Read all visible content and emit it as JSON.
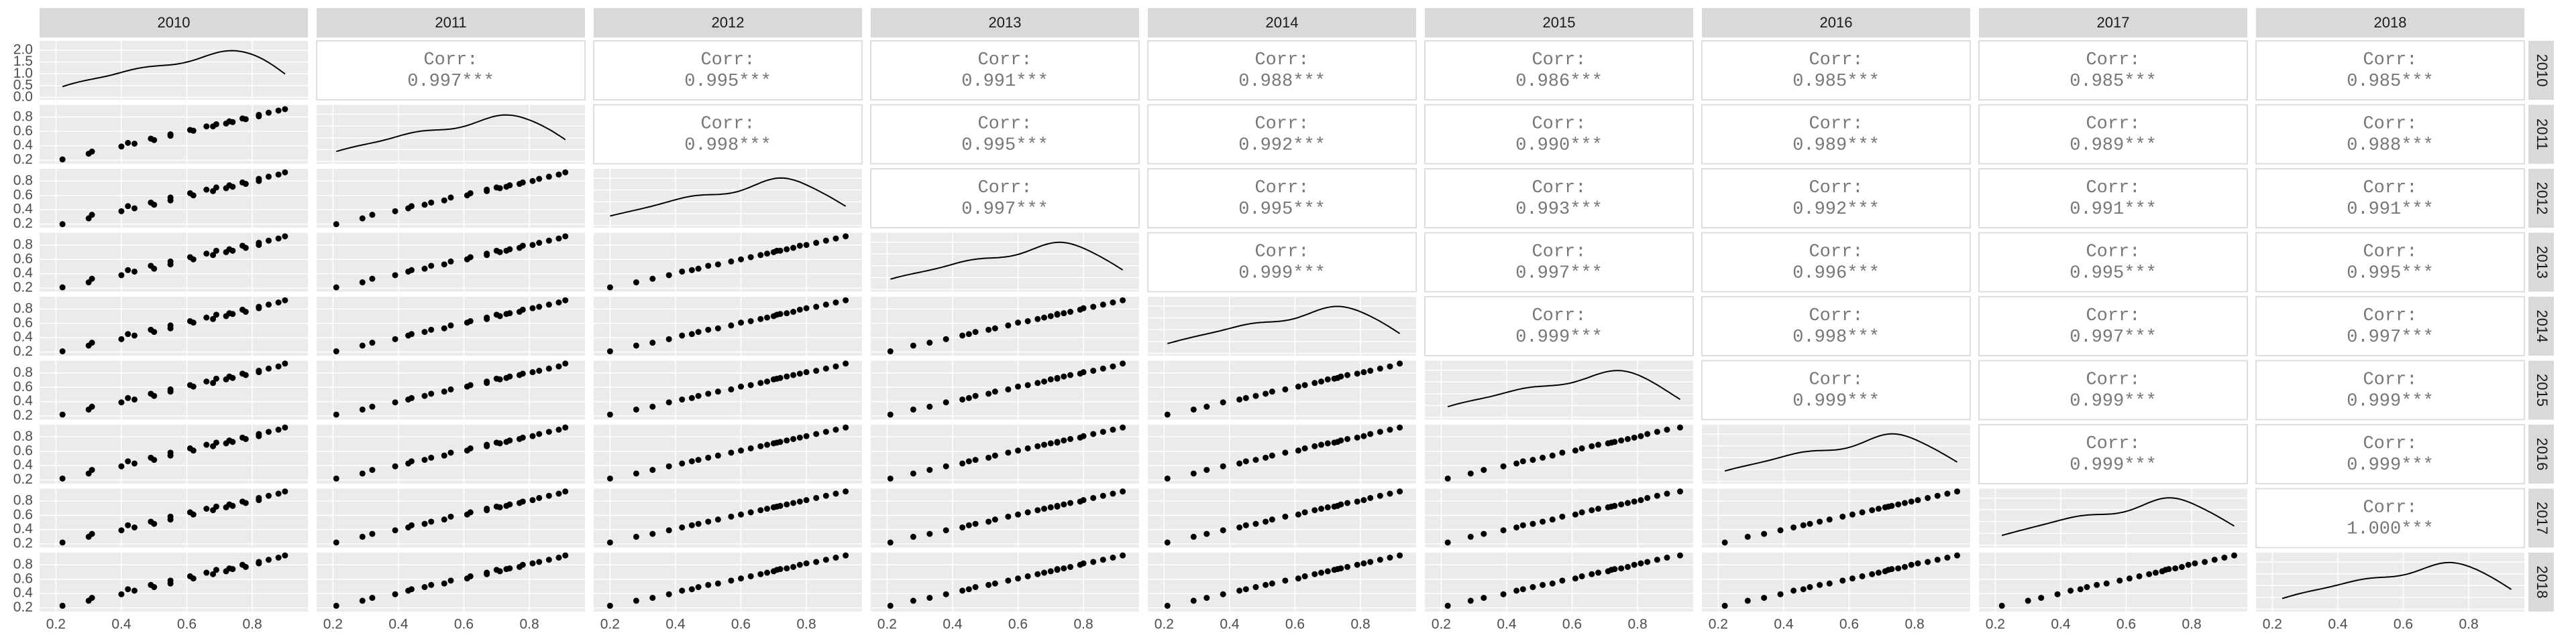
{
  "chart_data": {
    "type": "pairs",
    "xlim": [
      0.15,
      0.97
    ],
    "ylim": [
      0.15,
      0.97
    ],
    "xticks": [
      0.2,
      0.4,
      0.6,
      0.8
    ],
    "yticks": [
      0.2,
      0.4,
      0.6,
      0.8
    ],
    "density_ylim": [
      -0.1,
      2.4
    ],
    "density_yticks": [
      {
        "value": 0,
        "label": "0.0"
      },
      {
        "value": 0.5,
        "label": "0.5"
      },
      {
        "value": 1,
        "label": "1.0"
      },
      {
        "value": 1.5,
        "label": "1.5"
      },
      {
        "value": 2,
        "label": "2.0"
      }
    ],
    "grid": true,
    "color": "#000000",
    "corr_title": "Corr:",
    "series": [
      {
        "name": "2010",
        "values": [
          0.22,
          0.3,
          0.31,
          0.4,
          0.44,
          0.42,
          0.5,
          0.49,
          0.55,
          0.55,
          0.62,
          0.61,
          0.68,
          0.66,
          0.72,
          0.69,
          0.74,
          0.73,
          0.78,
          0.77,
          0.82,
          0.82,
          0.85,
          0.88,
          0.9
        ]
      },
      {
        "name": "2011",
        "values": [
          0.21,
          0.29,
          0.32,
          0.39,
          0.43,
          0.44,
          0.48,
          0.5,
          0.54,
          0.56,
          0.61,
          0.62,
          0.67,
          0.67,
          0.71,
          0.7,
          0.73,
          0.74,
          0.77,
          0.78,
          0.81,
          0.83,
          0.86,
          0.89,
          0.91
        ]
      },
      {
        "name": "2012",
        "values": [
          0.2,
          0.28,
          0.33,
          0.38,
          0.42,
          0.45,
          0.47,
          0.5,
          0.53,
          0.57,
          0.6,
          0.63,
          0.66,
          0.68,
          0.7,
          0.71,
          0.72,
          0.74,
          0.76,
          0.78,
          0.8,
          0.83,
          0.86,
          0.89,
          0.92
        ]
      },
      {
        "name": "2013",
        "values": [
          0.21,
          0.28,
          0.33,
          0.38,
          0.43,
          0.45,
          0.47,
          0.51,
          0.53,
          0.57,
          0.6,
          0.63,
          0.66,
          0.68,
          0.7,
          0.72,
          0.72,
          0.74,
          0.76,
          0.79,
          0.8,
          0.83,
          0.86,
          0.89,
          0.92
        ]
      },
      {
        "name": "2014",
        "values": [
          0.21,
          0.29,
          0.33,
          0.38,
          0.43,
          0.45,
          0.48,
          0.51,
          0.53,
          0.57,
          0.61,
          0.63,
          0.66,
          0.68,
          0.7,
          0.72,
          0.73,
          0.74,
          0.76,
          0.79,
          0.81,
          0.83,
          0.86,
          0.89,
          0.92
        ]
      },
      {
        "name": "2015",
        "values": [
          0.22,
          0.29,
          0.33,
          0.39,
          0.43,
          0.45,
          0.48,
          0.51,
          0.54,
          0.57,
          0.61,
          0.63,
          0.66,
          0.68,
          0.71,
          0.72,
          0.73,
          0.75,
          0.77,
          0.79,
          0.81,
          0.83,
          0.86,
          0.89,
          0.93
        ]
      },
      {
        "name": "2016",
        "values": [
          0.22,
          0.29,
          0.34,
          0.39,
          0.43,
          0.46,
          0.48,
          0.51,
          0.54,
          0.58,
          0.61,
          0.64,
          0.67,
          0.69,
          0.71,
          0.72,
          0.73,
          0.75,
          0.77,
          0.79,
          0.81,
          0.84,
          0.87,
          0.9,
          0.93
        ]
      },
      {
        "name": "2017",
        "values": [
          0.22,
          0.3,
          0.34,
          0.39,
          0.43,
          0.46,
          0.48,
          0.51,
          0.54,
          0.58,
          0.61,
          0.64,
          0.67,
          0.69,
          0.71,
          0.72,
          0.73,
          0.75,
          0.77,
          0.79,
          0.81,
          0.84,
          0.87,
          0.9,
          0.93
        ]
      },
      {
        "name": "2018",
        "values": [
          0.23,
          0.3,
          0.34,
          0.39,
          0.44,
          0.46,
          0.49,
          0.52,
          0.54,
          0.58,
          0.61,
          0.64,
          0.67,
          0.69,
          0.71,
          0.73,
          0.74,
          0.75,
          0.77,
          0.8,
          0.82,
          0.84,
          0.87,
          0.9,
          0.93
        ]
      }
    ],
    "correlations": [
      [
        {
          "value": 0.997,
          "label": "0.997***"
        },
        {
          "value": 0.995,
          "label": "0.995***"
        },
        {
          "value": 0.991,
          "label": "0.991***"
        },
        {
          "value": 0.988,
          "label": "0.988***"
        },
        {
          "value": 0.986,
          "label": "0.986***"
        },
        {
          "value": 0.985,
          "label": "0.985***"
        },
        {
          "value": 0.985,
          "label": "0.985***"
        },
        {
          "value": 0.985,
          "label": "0.985***"
        }
      ],
      [
        {
          "value": 0.998,
          "label": "0.998***"
        },
        {
          "value": 0.995,
          "label": "0.995***"
        },
        {
          "value": 0.992,
          "label": "0.992***"
        },
        {
          "value": 0.99,
          "label": "0.990***"
        },
        {
          "value": 0.989,
          "label": "0.989***"
        },
        {
          "value": 0.989,
          "label": "0.989***"
        },
        {
          "value": 0.988,
          "label": "0.988***"
        }
      ],
      [
        {
          "value": 0.997,
          "label": "0.997***"
        },
        {
          "value": 0.995,
          "label": "0.995***"
        },
        {
          "value": 0.993,
          "label": "0.993***"
        },
        {
          "value": 0.992,
          "label": "0.992***"
        },
        {
          "value": 0.991,
          "label": "0.991***"
        },
        {
          "value": 0.991,
          "label": "0.991***"
        }
      ],
      [
        {
          "value": 0.999,
          "label": "0.999***"
        },
        {
          "value": 0.997,
          "label": "0.997***"
        },
        {
          "value": 0.996,
          "label": "0.996***"
        },
        {
          "value": 0.995,
          "label": "0.995***"
        },
        {
          "value": 0.995,
          "label": "0.995***"
        }
      ],
      [
        {
          "value": 0.999,
          "label": "0.999***"
        },
        {
          "value": 0.998,
          "label": "0.998***"
        },
        {
          "value": 0.997,
          "label": "0.997***"
        },
        {
          "value": 0.997,
          "label": "0.997***"
        }
      ],
      [
        {
          "value": 0.999,
          "label": "0.999***"
        },
        {
          "value": 0.999,
          "label": "0.999***"
        },
        {
          "value": 0.999,
          "label": "0.999***"
        }
      ],
      [
        {
          "value": 0.999,
          "label": "0.999***"
        },
        {
          "value": 0.999,
          "label": "0.999***"
        }
      ],
      [
        {
          "value": 1.0,
          "label": "1.000***"
        }
      ]
    ]
  }
}
